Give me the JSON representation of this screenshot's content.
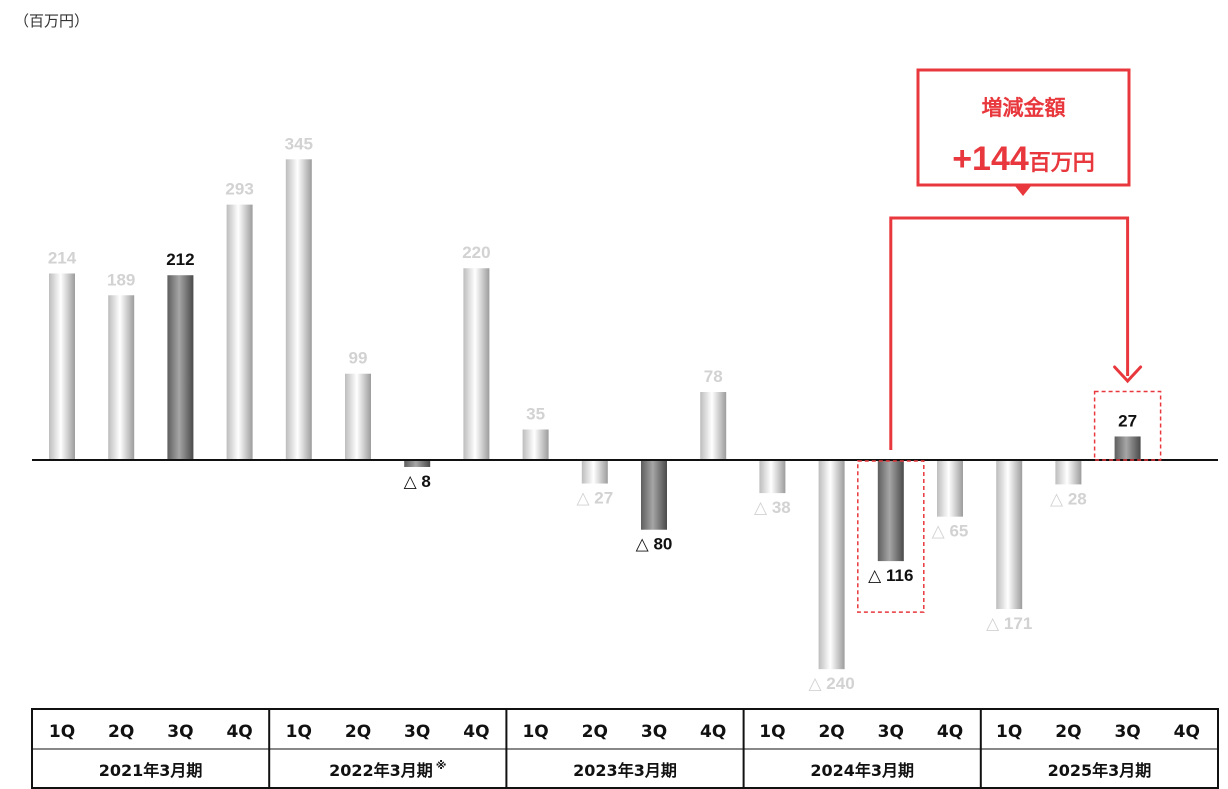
{
  "unit_label": "（百万円）",
  "colors": {
    "bar_light": "#dcdcdc",
    "bar_dark": "#7a7a7a",
    "label_light": "#d2d2d2",
    "label_dark": "#111111",
    "accent_red": "#e8383d",
    "axis": "#111111"
  },
  "chart_data": {
    "type": "bar",
    "categories": [
      "1Q",
      "2Q",
      "3Q",
      "4Q",
      "1Q",
      "2Q",
      "3Q",
      "4Q",
      "1Q",
      "2Q",
      "3Q",
      "4Q",
      "1Q",
      "2Q",
      "3Q",
      "4Q",
      "1Q",
      "2Q",
      "3Q",
      "4Q"
    ],
    "values": [
      214,
      189,
      212,
      293,
      345,
      99,
      -8,
      220,
      35,
      -27,
      -80,
      78,
      -38,
      -240,
      -116,
      -65,
      -171,
      -28,
      27,
      null
    ],
    "value_labels": [
      "214",
      "189",
      "212",
      "293",
      "345",
      "99",
      "△ 8",
      "220",
      "35",
      "△ 27",
      "△ 80",
      "78",
      "△ 38",
      "△ 240",
      "△ 116",
      "△ 65",
      "△ 171",
      "△ 28",
      "27",
      ""
    ],
    "highlighted": [
      false,
      false,
      true,
      false,
      false,
      false,
      true,
      false,
      false,
      false,
      true,
      false,
      false,
      false,
      true,
      false,
      false,
      false,
      true,
      false
    ],
    "groups": [
      {
        "label": "2021年3月期",
        "note": ""
      },
      {
        "label": "2022年3月期",
        "note": "※"
      },
      {
        "label": "2023年3月期",
        "note": ""
      },
      {
        "label": "2024年3月期",
        "note": ""
      },
      {
        "label": "2025年3月期",
        "note": ""
      }
    ],
    "ylim": [
      -240,
      345
    ],
    "annotation": {
      "title": "増減金額",
      "amount": "+144",
      "unit": "百万円",
      "from_index": 14,
      "to_index": 18
    }
  }
}
